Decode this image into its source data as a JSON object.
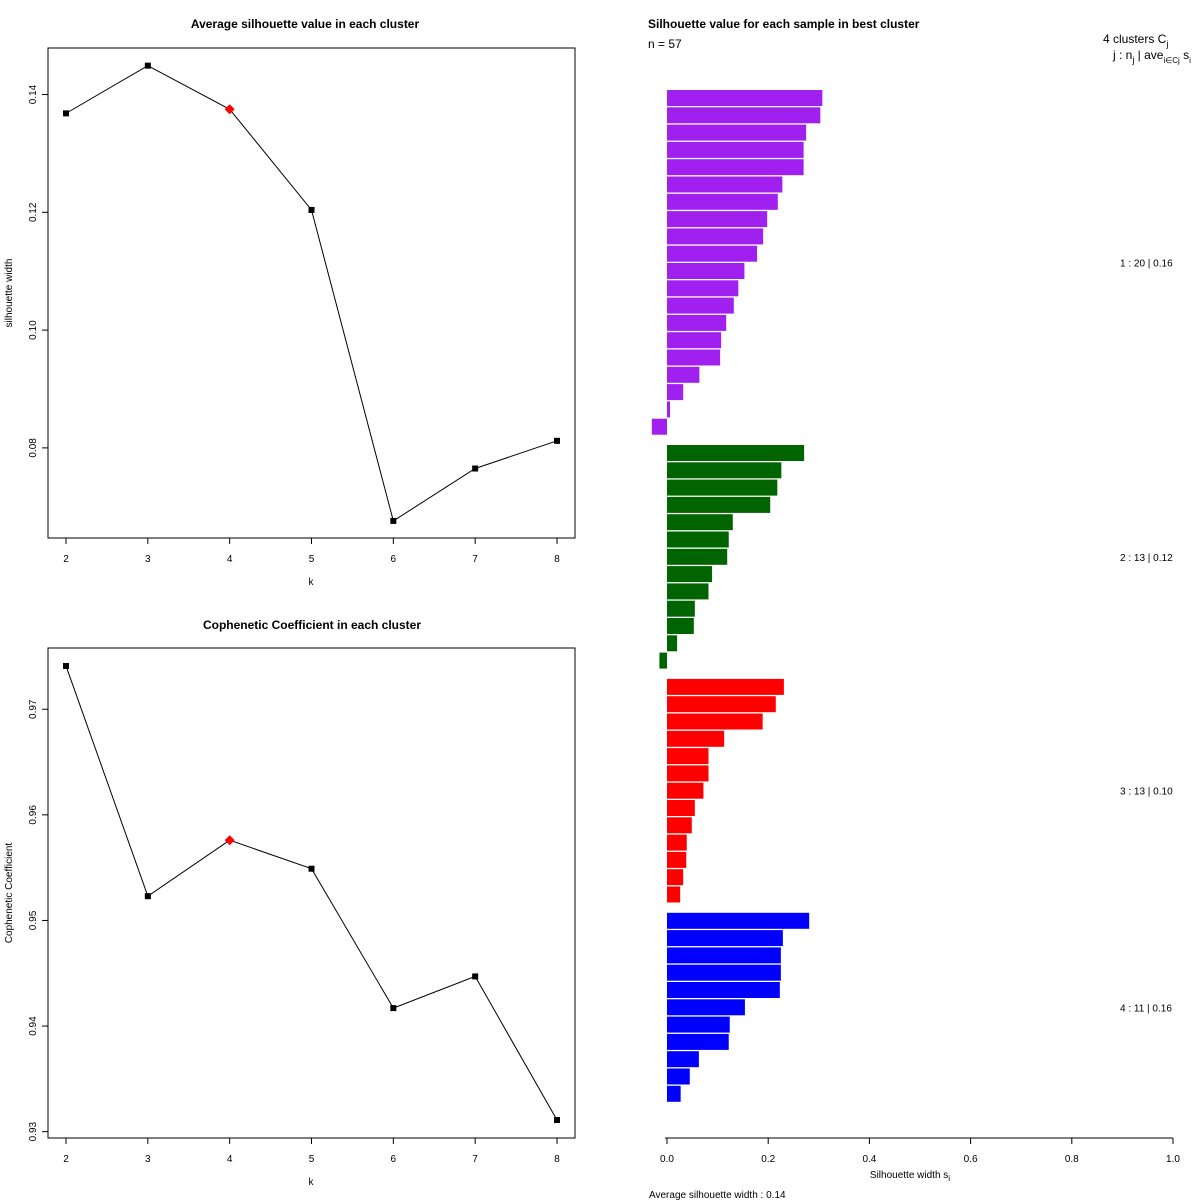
{
  "chart_data": [
    {
      "type": "line",
      "title": "Average silhouette value in each cluster",
      "xlabel": "k",
      "ylabel": "silhouette width",
      "x": [
        2,
        3,
        4,
        5,
        6,
        7,
        8
      ],
      "values": [
        0.1368,
        0.1449,
        0.1375,
        0.1204,
        0.0676,
        0.0765,
        0.0812
      ],
      "highlight_x": 4,
      "highlight_color": "#FF0000",
      "xticks": [
        "2",
        "3",
        "4",
        "5",
        "6",
        "7",
        "8"
      ],
      "yticks": [
        0.08,
        0.1,
        0.12,
        0.14
      ],
      "ytick_labels": [
        "0.08",
        "0.10",
        "0.12",
        "0.14"
      ],
      "xlim": [
        1.78,
        8.22
      ],
      "ylim": [
        0.0647,
        0.1479
      ]
    },
    {
      "type": "line",
      "title": "Cophenetic Coefficient in each cluster",
      "xlabel": "k",
      "ylabel": "Cophenetic Coefficient",
      "x": [
        2,
        3,
        4,
        5,
        6,
        7,
        8
      ],
      "values": [
        0.9741,
        0.9523,
        0.9576,
        0.9549,
        0.9417,
        0.9447,
        0.9311
      ],
      "highlight_x": 4,
      "highlight_color": "#FF0000",
      "xticks": [
        "2",
        "3",
        "4",
        "5",
        "6",
        "7",
        "8"
      ],
      "yticks": [
        0.93,
        0.94,
        0.95,
        0.96,
        0.97
      ],
      "ytick_labels": [
        "0.93",
        "0.94",
        "0.95",
        "0.96",
        "0.97"
      ],
      "xlim": [
        1.78,
        8.22
      ],
      "ylim": [
        0.9294,
        0.9758
      ]
    },
    {
      "type": "bar",
      "orientation": "horizontal",
      "title": "Silhouette value for each sample in best cluster",
      "n_label": "n = 57",
      "header_line1": "4  clusters  C",
      "header_sub1": "j",
      "header_line2": "j :  n",
      "header_sub2": "j",
      "header_line2b": " | ave",
      "header_sub3": "i∈Cj",
      "header_line2c": "  s",
      "header_sub4": "i",
      "xlabel": "Silhouette width s",
      "xlabel_sub": "i",
      "xticks": [
        0.0,
        0.2,
        0.4,
        0.6,
        0.8,
        1.0
      ],
      "xtick_labels": [
        "0.0",
        "0.2",
        "0.4",
        "0.6",
        "0.8",
        "1.0"
      ],
      "xlim": [
        -0.04,
        1.0
      ],
      "footer": "Average silhouette width :  0.14",
      "clusters": [
        {
          "id": 1,
          "color": "#A020F0",
          "label": "1 :   20  |  0.16",
          "values": [
            0.307,
            0.303,
            0.275,
            0.27,
            0.27,
            0.228,
            0.219,
            0.198,
            0.19,
            0.178,
            0.153,
            0.141,
            0.132,
            0.117,
            0.107,
            0.105,
            0.064,
            0.032,
            0.006,
            -0.03
          ]
        },
        {
          "id": 2,
          "color": "#006400",
          "label": "2 :   13  |  0.12",
          "values": [
            0.271,
            0.226,
            0.218,
            0.204,
            0.13,
            0.122,
            0.119,
            0.089,
            0.082,
            0.055,
            0.053,
            0.02,
            -0.015
          ]
        },
        {
          "id": 3,
          "color": "#FF0000",
          "label": "3 :   13  |  0.10",
          "values": [
            0.231,
            0.215,
            0.189,
            0.113,
            0.082,
            0.082,
            0.072,
            0.055,
            0.049,
            0.039,
            0.038,
            0.032,
            0.026
          ]
        },
        {
          "id": 4,
          "color": "#0000FF",
          "label": "4 :   11  |  0.16",
          "values": [
            0.281,
            0.229,
            0.225,
            0.225,
            0.223,
            0.154,
            0.124,
            0.122,
            0.063,
            0.045,
            0.027
          ]
        }
      ]
    }
  ]
}
